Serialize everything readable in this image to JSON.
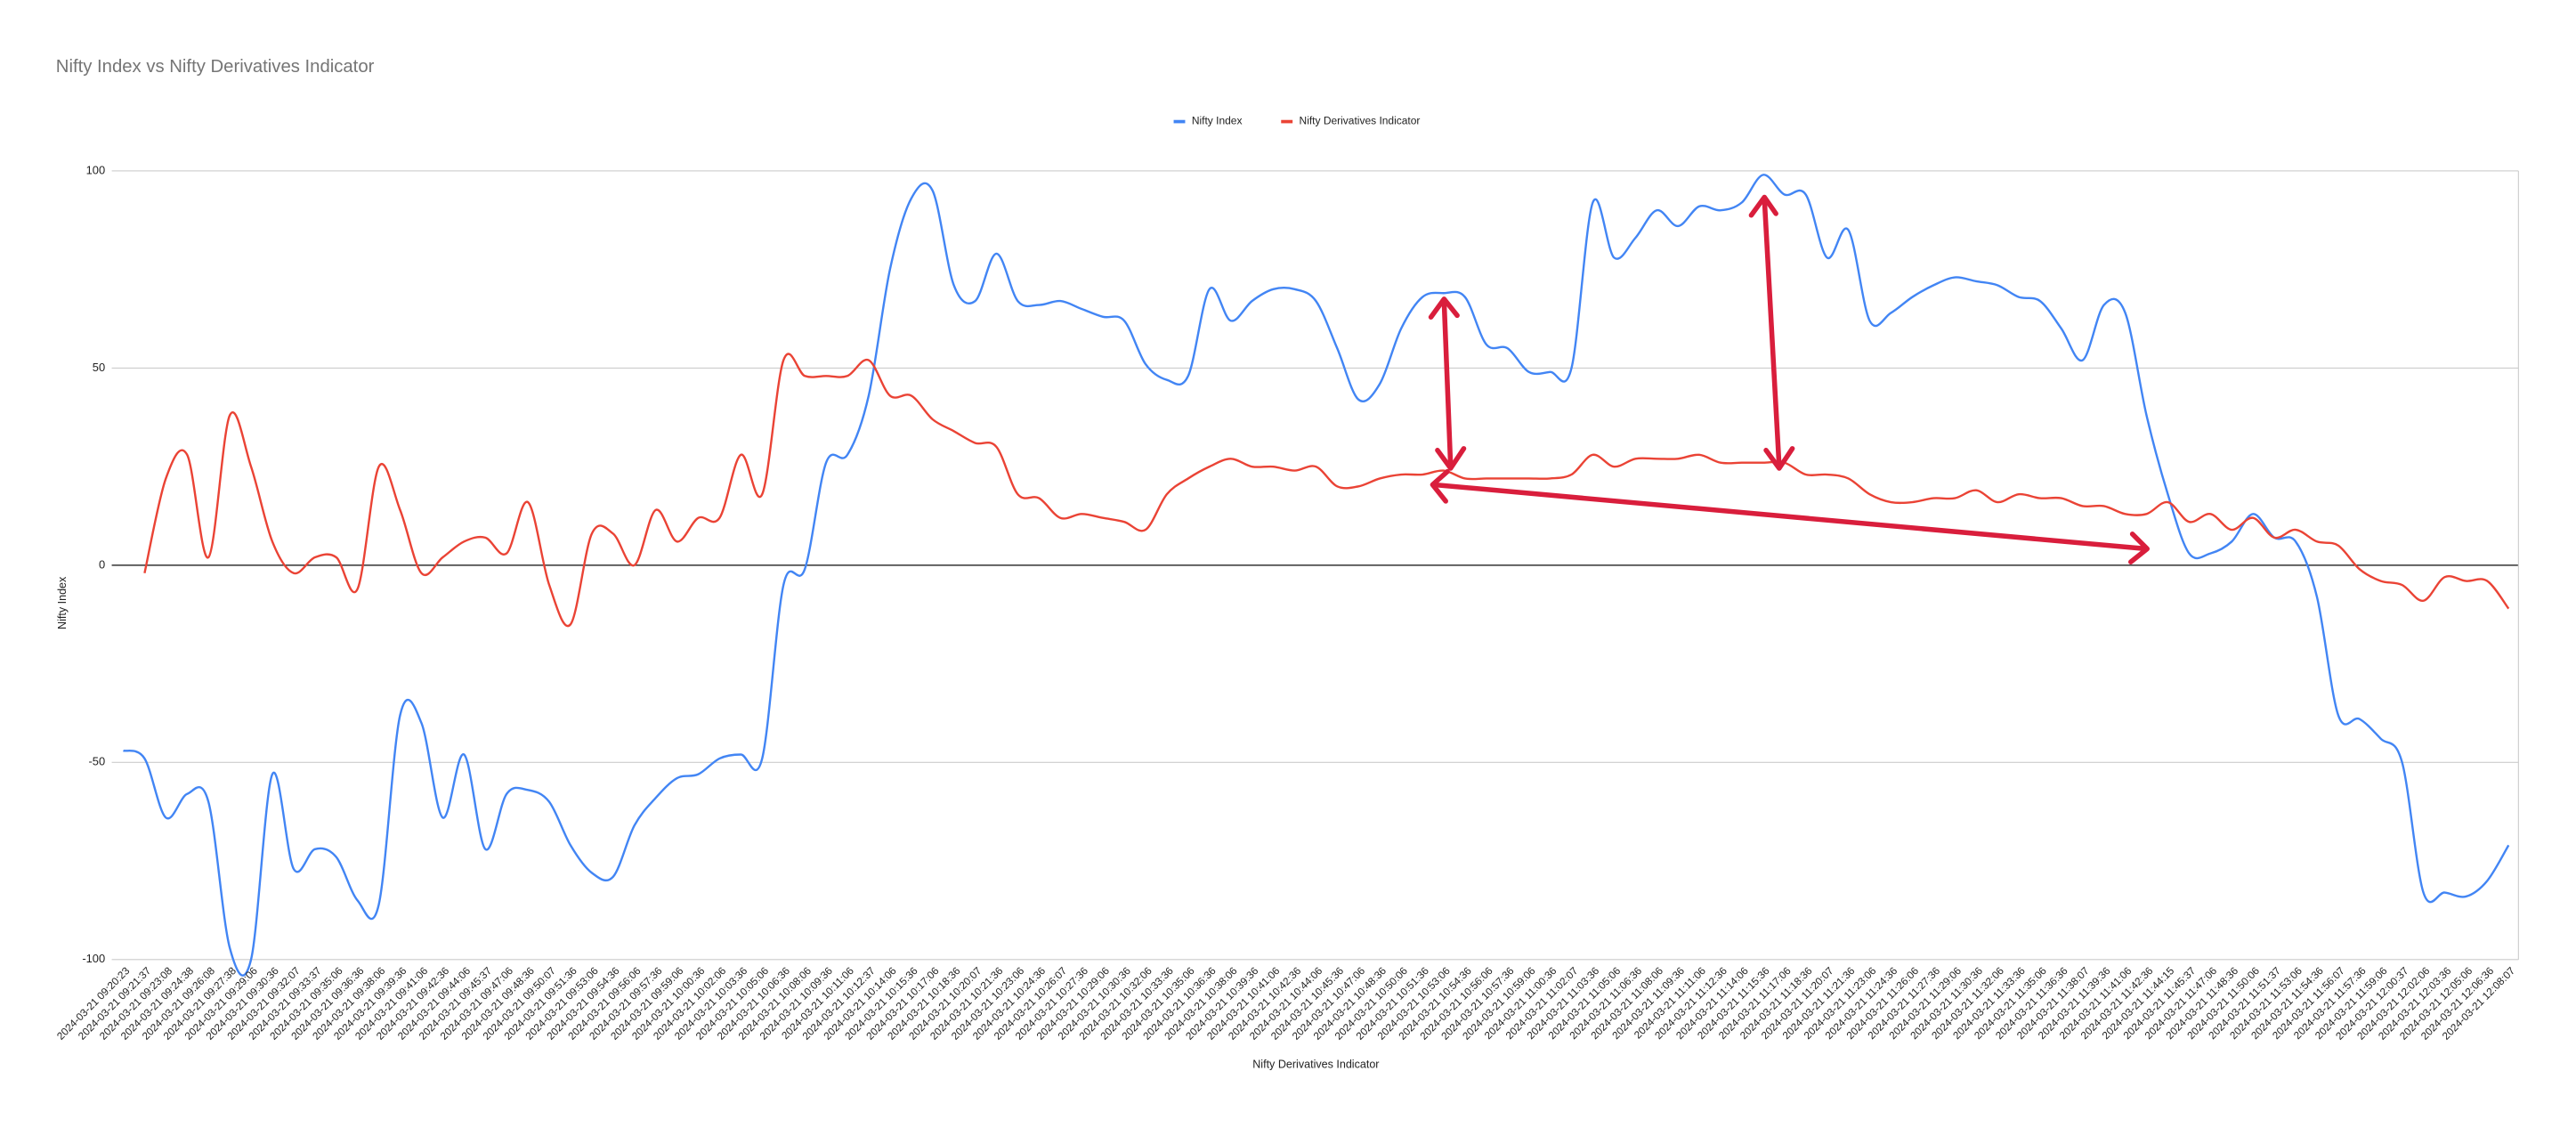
{
  "chart_data": {
    "type": "line",
    "title": "Nifty Index vs Nifty Derivatives Indicator",
    "x_label": "Nifty Derivatives Indicator",
    "y_label": "Nifty Index",
    "legend": "top",
    "grid": true,
    "ylim": [
      -100,
      100
    ],
    "yticks": [
      -100,
      -50,
      0,
      50,
      100
    ],
    "categories": [
      "2024-03-21 09:20:23",
      "2024-03-21 09:21:37",
      "2024-03-21 09:23:08",
      "2024-03-21 09:24:38",
      "2024-03-21 09:26:08",
      "2024-03-21 09:27:38",
      "2024-03-21 09:29:06",
      "2024-03-21 09:30:36",
      "2024-03-21 09:32:07",
      "2024-03-21 09:33:37",
      "2024-03-21 09:35:06",
      "2024-03-21 09:36:36",
      "2024-03-21 09:38:06",
      "2024-03-21 09:39:36",
      "2024-03-21 09:41:06",
      "2024-03-21 09:42:36",
      "2024-03-21 09:44:06",
      "2024-03-21 09:45:37",
      "2024-03-21 09:47:06",
      "2024-03-21 09:48:36",
      "2024-03-21 09:50:07",
      "2024-03-21 09:51:36",
      "2024-03-21 09:53:06",
      "2024-03-21 09:54:36",
      "2024-03-21 09:56:06",
      "2024-03-21 09:57:36",
      "2024-03-21 09:59:06",
      "2024-03-21 10:00:36",
      "2024-03-21 10:02:06",
      "2024-03-21 10:03:36",
      "2024-03-21 10:05:06",
      "2024-03-21 10:06:36",
      "2024-03-21 10:08:06",
      "2024-03-21 10:09:36",
      "2024-03-21 10:11:06",
      "2024-03-21 10:12:37",
      "2024-03-21 10:14:06",
      "2024-03-21 10:15:36",
      "2024-03-21 10:17:06",
      "2024-03-21 10:18:36",
      "2024-03-21 10:20:07",
      "2024-03-21 10:21:36",
      "2024-03-21 10:23:06",
      "2024-03-21 10:24:36",
      "2024-03-21 10:26:07",
      "2024-03-21 10:27:36",
      "2024-03-21 10:29:06",
      "2024-03-21 10:30:36",
      "2024-03-21 10:32:06",
      "2024-03-21 10:33:36",
      "2024-03-21 10:35:06",
      "2024-03-21 10:36:36",
      "2024-03-21 10:38:06",
      "2024-03-21 10:39:36",
      "2024-03-21 10:41:06",
      "2024-03-21 10:42:36",
      "2024-03-21 10:44:06",
      "2024-03-21 10:45:36",
      "2024-03-21 10:47:06",
      "2024-03-21 10:48:36",
      "2024-03-21 10:50:06",
      "2024-03-21 10:51:36",
      "2024-03-21 10:53:06",
      "2024-03-21 10:54:36",
      "2024-03-21 10:56:06",
      "2024-03-21 10:57:36",
      "2024-03-21 10:59:06",
      "2024-03-21 11:00:36",
      "2024-03-21 11:02:07",
      "2024-03-21 11:03:36",
      "2024-03-21 11:05:06",
      "2024-03-21 11:06:36",
      "2024-03-21 11:08:06",
      "2024-03-21 11:09:36",
      "2024-03-21 11:11:06",
      "2024-03-21 11:12:36",
      "2024-03-21 11:14:06",
      "2024-03-21 11:15:36",
      "2024-03-21 11:17:06",
      "2024-03-21 11:18:36",
      "2024-03-21 11:20:07",
      "2024-03-21 11:21:36",
      "2024-03-21 11:23:06",
      "2024-03-21 11:24:36",
      "2024-03-21 11:26:06",
      "2024-03-21 11:27:36",
      "2024-03-21 11:29:06",
      "2024-03-21 11:30:36",
      "2024-03-21 11:32:06",
      "2024-03-21 11:33:36",
      "2024-03-21 11:35:06",
      "2024-03-21 11:36:36",
      "2024-03-21 11:38:07",
      "2024-03-21 11:39:36",
      "2024-03-21 11:41:06",
      "2024-03-21 11:42:36",
      "2024-03-21 11:44:15",
      "2024-03-21 11:45:37",
      "2024-03-21 11:47:06",
      "2024-03-21 11:48:36",
      "2024-03-21 11:50:06",
      "2024-03-21 11:51:37",
      "2024-03-21 11:53:06",
      "2024-03-21 11:54:36",
      "2024-03-21 11:56:07",
      "2024-03-21 11:57:36",
      "2024-03-21 11:59:06",
      "2024-03-21 12:00:37",
      "2024-03-21 12:02:06",
      "2024-03-21 12:03:36",
      "2024-03-21 12:05:06",
      "2024-03-21 12:06:36",
      "2024-03-21 12:08:07"
    ],
    "series": [
      {
        "name": "Nifty Index",
        "color": "#4285f4",
        "values": [
          -47,
          -49,
          -64,
          -58,
          -60,
          -97,
          -100,
          -53,
          -77,
          -72,
          -74,
          -85,
          -86,
          -38,
          -40,
          -64,
          -48,
          -72,
          -58,
          -57,
          -60,
          -71,
          -78,
          -79,
          -66,
          -59,
          -54,
          -53,
          -49,
          -48,
          -49,
          -5,
          -1,
          26,
          28,
          43,
          75,
          93,
          95,
          71,
          67,
          79,
          67,
          66,
          67,
          65,
          63,
          62,
          51,
          47,
          48,
          70,
          62,
          67,
          70,
          70,
          67,
          55,
          42,
          46,
          60,
          68,
          69,
          68,
          56,
          55,
          49,
          49,
          50,
          92,
          78,
          83,
          90,
          86,
          91,
          90,
          92,
          99,
          94,
          94,
          78,
          85,
          62,
          64,
          68,
          71,
          73,
          72,
          71,
          68,
          67,
          60,
          52,
          66,
          64,
          38,
          18,
          3,
          3,
          6,
          13,
          7,
          6,
          -8,
          -38,
          -39,
          -44,
          -50,
          -83,
          -83,
          -84,
          -80,
          -71
        ]
      },
      {
        "name": "Nifty Derivatives Indicator",
        "color": "#ea4335",
        "values": [
          null,
          -2,
          22,
          28,
          2,
          38,
          25,
          6,
          -2,
          2,
          2,
          -6,
          25,
          14,
          -2,
          2,
          6,
          7,
          3,
          16,
          -5,
          -15,
          8,
          8,
          0,
          14,
          6,
          12,
          12,
          28,
          18,
          52,
          48,
          48,
          48,
          52,
          43,
          43,
          37,
          34,
          31,
          30,
          18,
          17,
          12,
          13,
          12,
          11,
          9,
          18,
          22,
          25,
          27,
          25,
          25,
          24,
          25,
          20,
          20,
          22,
          23,
          23,
          24,
          22,
          22,
          22,
          22,
          22,
          23,
          28,
          25,
          27,
          27,
          27,
          28,
          26,
          26,
          26,
          26,
          23,
          23,
          22,
          18,
          16,
          16,
          17,
          17,
          19,
          16,
          18,
          17,
          17,
          15,
          15,
          13,
          13,
          16,
          11,
          13,
          9,
          12,
          7,
          9,
          6,
          5,
          -1,
          -4,
          -5,
          -9,
          -3,
          -4,
          -4,
          -11
        ]
      }
    ]
  }
}
